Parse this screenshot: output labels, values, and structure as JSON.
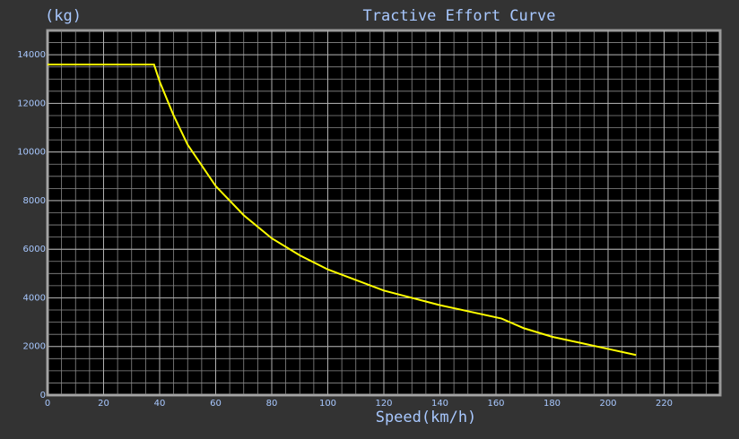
{
  "chart_data": {
    "type": "line",
    "title": "Tractive Effort Curve",
    "ylabel": "(kg)",
    "xlabel": "Speed(km/h)",
    "x": [
      0,
      38,
      40,
      45,
      50,
      60,
      70,
      80,
      90,
      100,
      120,
      140,
      162,
      170,
      180,
      190,
      200,
      210
    ],
    "series": [
      {
        "name": "Tractive Effort",
        "color": "#ffff00",
        "values": [
          13600,
          13600,
          12900,
          11500,
          10300,
          8600,
          7400,
          6450,
          5750,
          5170,
          4300,
          3700,
          3150,
          2750,
          2400,
          2150,
          1900,
          1650
        ]
      }
    ],
    "xlim": [
      0,
      240
    ],
    "xticks": [
      0,
      20,
      40,
      60,
      80,
      100,
      120,
      140,
      160,
      180,
      200,
      220
    ],
    "ylim": [
      0,
      15000
    ],
    "yticks": [
      0,
      2000,
      4000,
      6000,
      8000,
      10000,
      12000,
      14000
    ],
    "grid": true
  }
}
